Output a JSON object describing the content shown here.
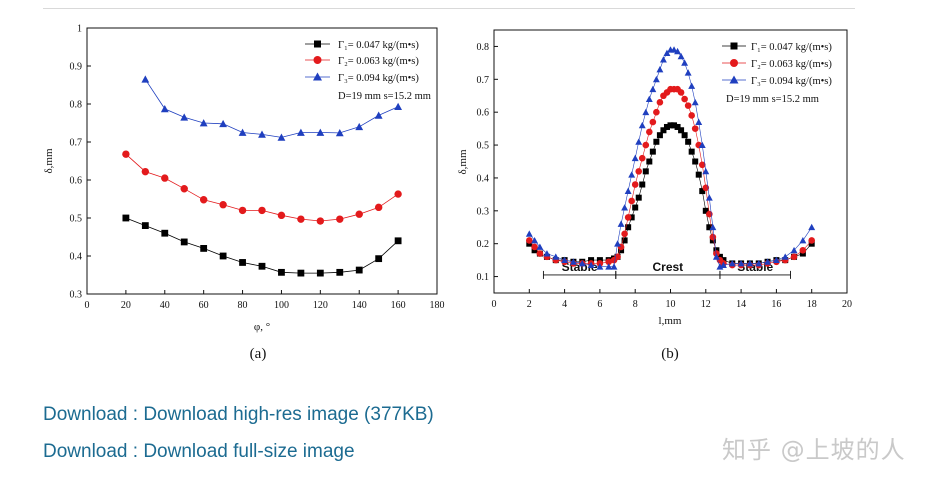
{
  "links": {
    "high_res": "Download : Download high-res image (377KB)",
    "full_size": "Download : Download full-size image"
  },
  "watermark": "知乎 @上坡的人",
  "colors": {
    "black": "#000000",
    "red": "#e31a1c",
    "blue": "#1f3fbf",
    "link": "#1c6b91"
  },
  "chart_data": [
    {
      "type": "line",
      "caption": "(a)",
      "xlabel": "φ, °",
      "ylabel": "δ,mm",
      "xlim": [
        0,
        180
      ],
      "ylim": [
        0.3,
        1.0
      ],
      "xticks": [
        0,
        20,
        40,
        60,
        80,
        100,
        120,
        140,
        160,
        180
      ],
      "yticks": [
        0.3,
        0.4,
        0.5,
        0.6,
        0.7,
        0.8,
        0.9,
        1.0
      ],
      "legend_position": "top-right",
      "legend_note": "D=19 mm   s=15.2 mm",
      "series": [
        {
          "name": "Γ₁= 0.047 kg/(m•s)",
          "marker": "square",
          "color": "#000000",
          "x": [
            20,
            30,
            40,
            50,
            60,
            70,
            80,
            90,
            100,
            110,
            120,
            130,
            140,
            150,
            160
          ],
          "y": [
            0.5,
            0.48,
            0.46,
            0.437,
            0.42,
            0.4,
            0.383,
            0.373,
            0.357,
            0.355,
            0.355,
            0.357,
            0.363,
            0.393,
            0.44
          ]
        },
        {
          "name": "Γ₂= 0.063 kg/(m•s)",
          "marker": "circle",
          "color": "#e31a1c",
          "x": [
            20,
            30,
            40,
            50,
            60,
            70,
            80,
            90,
            100,
            110,
            120,
            130,
            140,
            150,
            160
          ],
          "y": [
            0.668,
            0.622,
            0.605,
            0.577,
            0.548,
            0.535,
            0.52,
            0.52,
            0.507,
            0.497,
            0.492,
            0.497,
            0.51,
            0.528,
            0.563
          ]
        },
        {
          "name": "Γ₃= 0.094 kg/(m•s)",
          "marker": "triangle",
          "color": "#1f3fbf",
          "x": [
            30,
            40,
            50,
            60,
            70,
            80,
            90,
            100,
            110,
            120,
            130,
            140,
            150,
            160
          ],
          "y": [
            0.865,
            0.787,
            0.765,
            0.75,
            0.748,
            0.725,
            0.72,
            0.712,
            0.725,
            0.725,
            0.724,
            0.74,
            0.77,
            0.793
          ]
        }
      ]
    },
    {
      "type": "line",
      "caption": "(b)",
      "xlabel": "l,mm",
      "ylabel": "δ,mm",
      "xlim": [
        0,
        20
      ],
      "ylim": [
        0.05,
        0.85
      ],
      "xticks": [
        0,
        2,
        4,
        6,
        8,
        10,
        12,
        14,
        16,
        18,
        20
      ],
      "yticks": [
        0.1,
        0.2,
        0.3,
        0.4,
        0.5,
        0.6,
        0.7,
        0.8
      ],
      "legend_position": "top-right",
      "legend_note": "D=19 mm   s=15.2 mm",
      "regions": [
        {
          "label": "Stable",
          "from": 2.8,
          "to": 6.9
        },
        {
          "label": "Crest",
          "from": 6.9,
          "to": 12.8
        },
        {
          "label": "Stable",
          "from": 12.8,
          "to": 16.8
        }
      ],
      "series": [
        {
          "name": "Γ₁= 0.047 kg/(m•s)",
          "marker": "square",
          "color": "#000000",
          "x": [
            2.0,
            2.3,
            2.6,
            3.0,
            3.5,
            4.0,
            4.5,
            5.0,
            5.5,
            6.0,
            6.5,
            6.8,
            7.0,
            7.2,
            7.4,
            7.6,
            7.8,
            8.0,
            8.2,
            8.4,
            8.6,
            8.8,
            9.0,
            9.2,
            9.4,
            9.6,
            9.8,
            10.0,
            10.2,
            10.4,
            10.6,
            10.8,
            11.0,
            11.2,
            11.4,
            11.6,
            11.8,
            12.0,
            12.2,
            12.4,
            12.6,
            12.8,
            13.0,
            13.5,
            14.0,
            14.5,
            15.0,
            15.5,
            16.0,
            16.5,
            17.0,
            17.5,
            18.0
          ],
          "y": [
            0.2,
            0.18,
            0.17,
            0.16,
            0.15,
            0.15,
            0.145,
            0.145,
            0.15,
            0.15,
            0.15,
            0.155,
            0.16,
            0.18,
            0.21,
            0.25,
            0.28,
            0.31,
            0.34,
            0.38,
            0.42,
            0.45,
            0.48,
            0.51,
            0.53,
            0.545,
            0.555,
            0.56,
            0.56,
            0.555,
            0.545,
            0.53,
            0.51,
            0.48,
            0.45,
            0.41,
            0.36,
            0.3,
            0.25,
            0.21,
            0.18,
            0.16,
            0.15,
            0.14,
            0.14,
            0.14,
            0.14,
            0.145,
            0.15,
            0.15,
            0.16,
            0.17,
            0.2
          ]
        },
        {
          "name": "Γ₂= 0.063 kg/(m•s)",
          "marker": "circle",
          "color": "#e31a1c",
          "x": [
            2.0,
            2.3,
            2.6,
            3.0,
            3.5,
            4.0,
            4.5,
            5.0,
            5.5,
            6.0,
            6.5,
            6.8,
            7.0,
            7.2,
            7.4,
            7.6,
            7.8,
            8.0,
            8.2,
            8.4,
            8.6,
            8.8,
            9.0,
            9.2,
            9.4,
            9.6,
            9.8,
            10.0,
            10.2,
            10.4,
            10.6,
            10.8,
            11.0,
            11.2,
            11.4,
            11.6,
            11.8,
            12.0,
            12.2,
            12.4,
            12.6,
            12.8,
            13.0,
            13.5,
            14.0,
            14.5,
            15.0,
            15.5,
            16.0,
            16.5,
            17.0,
            17.5,
            18.0
          ],
          "y": [
            0.21,
            0.19,
            0.17,
            0.16,
            0.15,
            0.145,
            0.14,
            0.14,
            0.14,
            0.14,
            0.145,
            0.15,
            0.16,
            0.19,
            0.23,
            0.28,
            0.33,
            0.38,
            0.42,
            0.46,
            0.5,
            0.54,
            0.57,
            0.6,
            0.63,
            0.65,
            0.66,
            0.67,
            0.67,
            0.67,
            0.66,
            0.64,
            0.62,
            0.59,
            0.55,
            0.5,
            0.44,
            0.37,
            0.29,
            0.22,
            0.17,
            0.15,
            0.14,
            0.135,
            0.135,
            0.135,
            0.135,
            0.14,
            0.145,
            0.15,
            0.16,
            0.18,
            0.21
          ]
        },
        {
          "name": "Γ₃= 0.094 kg/(m•s)",
          "marker": "triangle",
          "color": "#1f3fbf",
          "x": [
            2.0,
            2.3,
            2.6,
            3.0,
            3.5,
            4.0,
            4.5,
            5.0,
            5.5,
            6.0,
            6.5,
            6.8,
            7.0,
            7.2,
            7.4,
            7.6,
            7.8,
            8.0,
            8.2,
            8.4,
            8.6,
            8.8,
            9.0,
            9.2,
            9.4,
            9.6,
            9.8,
            10.0,
            10.2,
            10.4,
            10.6,
            10.8,
            11.0,
            11.2,
            11.4,
            11.6,
            11.8,
            12.0,
            12.2,
            12.4,
            12.6,
            12.8,
            13.0,
            13.5,
            14.0,
            14.5,
            15.0,
            15.5,
            16.0,
            16.5,
            17.0,
            17.5,
            18.0
          ],
          "y": [
            0.23,
            0.21,
            0.19,
            0.17,
            0.16,
            0.15,
            0.145,
            0.14,
            0.135,
            0.13,
            0.13,
            0.13,
            0.2,
            0.26,
            0.31,
            0.36,
            0.41,
            0.46,
            0.51,
            0.56,
            0.6,
            0.64,
            0.67,
            0.7,
            0.73,
            0.76,
            0.78,
            0.79,
            0.79,
            0.785,
            0.77,
            0.75,
            0.72,
            0.68,
            0.63,
            0.57,
            0.5,
            0.42,
            0.34,
            0.25,
            0.16,
            0.13,
            0.135,
            0.14,
            0.14,
            0.14,
            0.14,
            0.145,
            0.15,
            0.16,
            0.18,
            0.21,
            0.25
          ]
        }
      ]
    }
  ]
}
